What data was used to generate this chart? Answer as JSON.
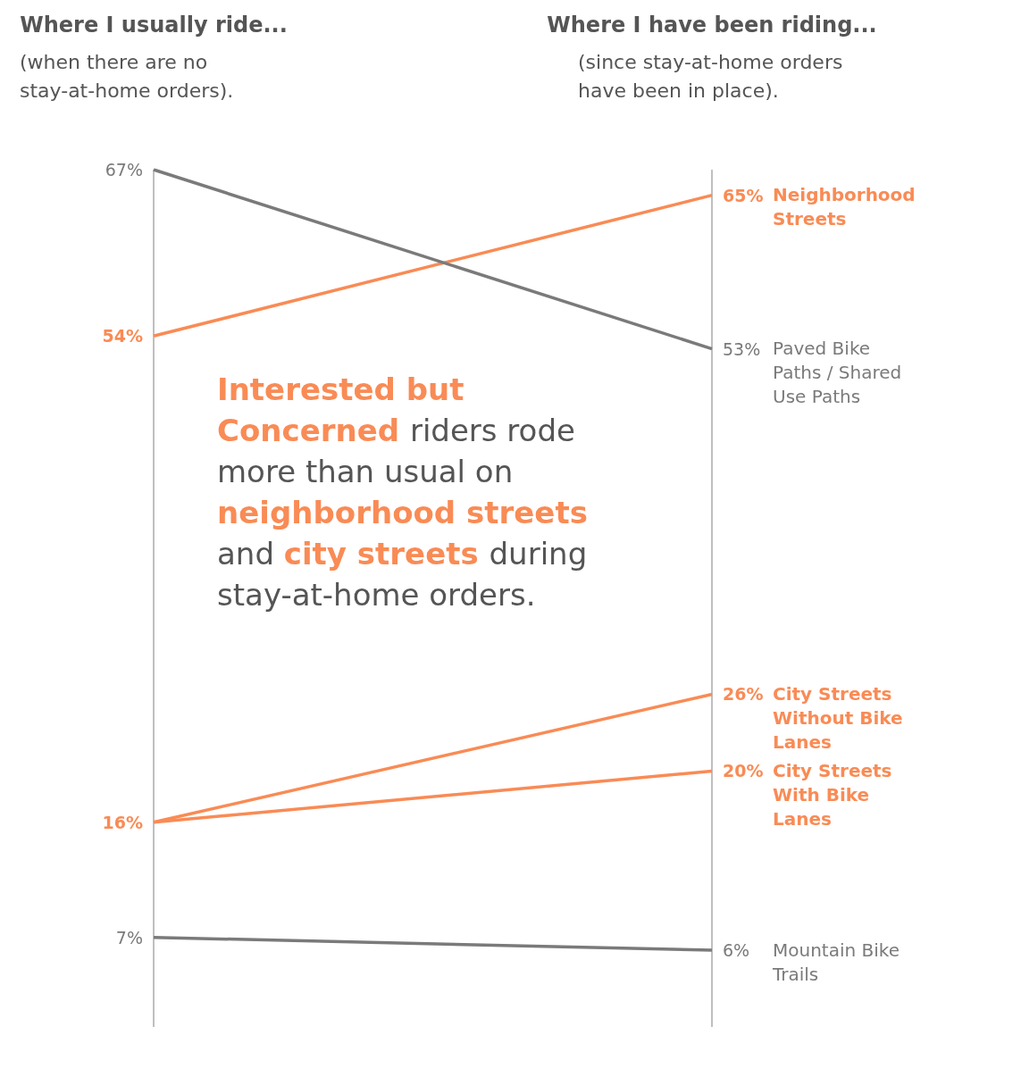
{
  "chart_data": {
    "type": "line",
    "categories": [
      "Where I usually ride...",
      "Where I have been riding..."
    ],
    "series": [
      {
        "name": "Neighborhood Streets",
        "color": "#f98b55",
        "values": [
          54,
          65
        ],
        "value_labels": [
          "54%",
          "65%"
        ]
      },
      {
        "name": "Paved Bike Paths / Shared Use Paths",
        "color": "#7a7a7a",
        "values": [
          67,
          53
        ],
        "value_labels": [
          "67%",
          "53%"
        ]
      },
      {
        "name": "City Streets Without Bike Lanes",
        "color": "#f98b55",
        "values": [
          16,
          26
        ],
        "value_labels": [
          "16%",
          "26%"
        ]
      },
      {
        "name": "City Streets With Bike Lanes",
        "color": "#f98b55",
        "values": [
          16,
          20
        ],
        "value_labels": [
          null,
          "20%"
        ]
      },
      {
        "name": "Mountain Bike Trails",
        "color": "#7a7a7a",
        "values": [
          7,
          6
        ],
        "value_labels": [
          "7%",
          "6%"
        ]
      }
    ],
    "annotations": [
      "(when there are no stay-at-home orders).",
      "(since stay-at-home orders have been in place).",
      "Interested but Concerned",
      "riders rode more than usual on",
      "neighborhood streets",
      "and",
      "city streets",
      "during stay-at-home orders."
    ]
  }
}
